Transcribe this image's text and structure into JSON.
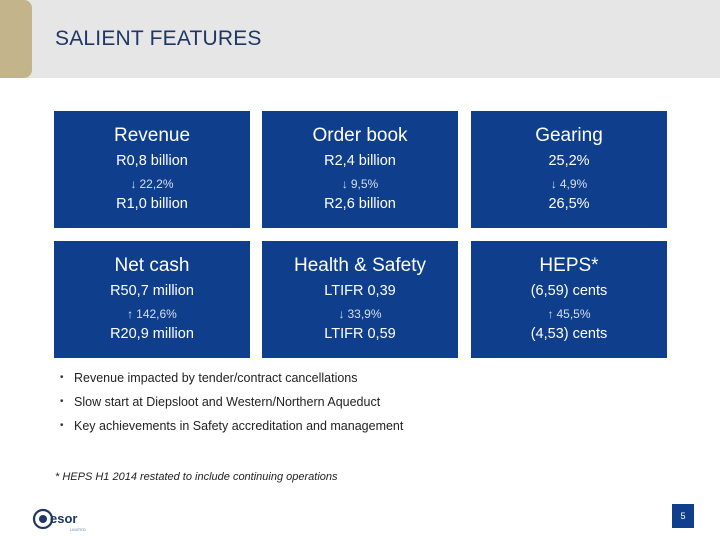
{
  "slide": {
    "title": "SALIENT FEATURES",
    "page_number": "5"
  },
  "tiles": [
    {
      "title": "Revenue",
      "value": "R0,8 billion",
      "arrow": "↓",
      "direction": "down",
      "change": "22,2%",
      "prior": "R1,0 billion"
    },
    {
      "title": "Order book",
      "value": "R2,4 billion",
      "arrow": "↓",
      "direction": "down",
      "change": "9,5%",
      "prior": "R2,6 billion"
    },
    {
      "title": "Gearing",
      "value": "25,2%",
      "arrow": "↓",
      "direction": "down",
      "change": "4,9%",
      "prior": "26,5%"
    },
    {
      "title": "Net cash",
      "value": "R50,7 million",
      "arrow": "↑",
      "direction": "up",
      "change": "142,6%",
      "prior": "R20,9 million"
    },
    {
      "title": "Health & Safety",
      "value": "LTIFR 0,39",
      "arrow": "↓",
      "direction": "down",
      "change": "33,9%",
      "prior": "LTIFR 0,59"
    },
    {
      "title": "HEPS*",
      "value": "(6,59) cents",
      "arrow": "↑",
      "direction": "up",
      "change": "45,5%",
      "prior": "(4,53) cents"
    }
  ],
  "bullets": [
    "Revenue impacted by tender/contract cancellations",
    "Slow start at Diepsloot and Western/Northern Aqueduct",
    "Key achievements in Safety accreditation and management"
  ],
  "footnote": "* HEPS H1 2014 restated to include continuing operations",
  "logo": {
    "text": "esor",
    "tagline": "LIMITED"
  },
  "colors": {
    "tile": "#0f3f8c",
    "header": "#e6e6e7",
    "accent": "#c3b48c",
    "title": "#1f3764"
  }
}
